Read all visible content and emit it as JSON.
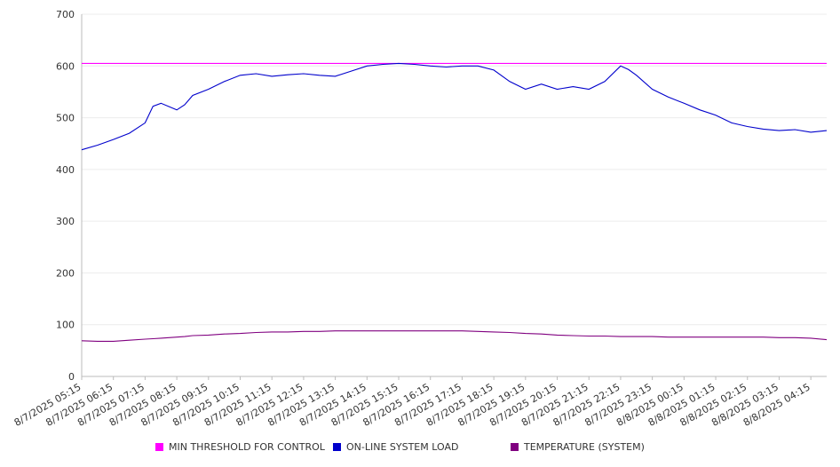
{
  "chart_data": {
    "type": "line",
    "ylim": [
      0,
      700
    ],
    "y_ticks": [
      0,
      100,
      200,
      300,
      400,
      500,
      600,
      700
    ],
    "x_tick_labels": [
      "8/7/2025 05:15",
      "8/7/2025 06:15",
      "8/7/2025 07:15",
      "8/7/2025 08:15",
      "8/7/2025 09:15",
      "8/7/2025 10:15",
      "8/7/2025 11:15",
      "8/7/2025 12:15",
      "8/7/2025 13:15",
      "8/7/2025 14:15",
      "8/7/2025 15:15",
      "8/7/2025 16:15",
      "8/7/2025 17:15",
      "8/7/2025 18:15",
      "8/7/2025 19:15",
      "8/7/2025 20:15",
      "8/7/2025 21:15",
      "8/7/2025 22:15",
      "8/7/2025 23:15",
      "8/8/2025 00:15",
      "8/8/2025 01:15",
      "8/8/2025 02:15",
      "8/8/2025 03:15",
      "8/8/2025 04:15"
    ],
    "x": [
      "8/7/2025 05:15",
      "8/7/2025 05:45",
      "8/7/2025 06:15",
      "8/7/2025 06:45",
      "8/7/2025 07:15",
      "8/7/2025 07:30",
      "8/7/2025 07:45",
      "8/7/2025 08:15",
      "8/7/2025 08:30",
      "8/7/2025 08:45",
      "8/7/2025 09:15",
      "8/7/2025 09:45",
      "8/7/2025 10:15",
      "8/7/2025 10:45",
      "8/7/2025 11:15",
      "8/7/2025 11:45",
      "8/7/2025 12:15",
      "8/7/2025 12:45",
      "8/7/2025 13:15",
      "8/7/2025 13:45",
      "8/7/2025 14:15",
      "8/7/2025 14:45",
      "8/7/2025 15:15",
      "8/7/2025 15:45",
      "8/7/2025 16:15",
      "8/7/2025 16:45",
      "8/7/2025 17:15",
      "8/7/2025 17:45",
      "8/7/2025 18:15",
      "8/7/2025 18:45",
      "8/7/2025 19:15",
      "8/7/2025 19:45",
      "8/7/2025 20:15",
      "8/7/2025 20:45",
      "8/7/2025 21:15",
      "8/7/2025 21:45",
      "8/7/2025 22:15",
      "8/7/2025 22:30",
      "8/7/2025 22:45",
      "8/7/2025 23:15",
      "8/7/2025 23:45",
      "8/8/2025 00:15",
      "8/8/2025 00:45",
      "8/8/2025 01:15",
      "8/8/2025 01:45",
      "8/8/2025 02:15",
      "8/8/2025 02:45",
      "8/8/2025 03:15",
      "8/8/2025 03:45",
      "8/8/2025 04:15",
      "8/8/2025 04:45"
    ],
    "series": [
      {
        "name": "MIN THRESHOLD FOR CONTROL",
        "color": "#ff00ff",
        "values": [
          605,
          605,
          605,
          605,
          605,
          605,
          605,
          605,
          605,
          605,
          605,
          605,
          605,
          605,
          605,
          605,
          605,
          605,
          605,
          605,
          605,
          605,
          605,
          605,
          605,
          605,
          605,
          605,
          605,
          605,
          605,
          605,
          605,
          605,
          605,
          605,
          605,
          605,
          605,
          605,
          605,
          605,
          605,
          605,
          605,
          605,
          605,
          605,
          605,
          605,
          605
        ]
      },
      {
        "name": "ON-LINE SYSTEM LOAD",
        "color": "#0000cc",
        "values": [
          438,
          447,
          458,
          470,
          490,
          522,
          528,
          515,
          525,
          543,
          555,
          570,
          582,
          585,
          580,
          583,
          585,
          582,
          580,
          590,
          600,
          603,
          605,
          603,
          600,
          598,
          600,
          600,
          592,
          570,
          555,
          565,
          555,
          560,
          555,
          570,
          600,
          593,
          582,
          555,
          540,
          528,
          515,
          505,
          490,
          483,
          478,
          475,
          477,
          472,
          475
        ]
      },
      {
        "name": "TEMPERATURE (SYSTEM)",
        "color": "#800080",
        "values": [
          69,
          68,
          68,
          70,
          72,
          73,
          74,
          76,
          77,
          79,
          80,
          82,
          83,
          85,
          86,
          86,
          87,
          87,
          88,
          88,
          88,
          88,
          88,
          88,
          88,
          88,
          88,
          87,
          86,
          85,
          83,
          82,
          80,
          79,
          78,
          78,
          77,
          77,
          77,
          77,
          76,
          76,
          76,
          76,
          76,
          76,
          76,
          75,
          75,
          74,
          71
        ]
      }
    ],
    "legend_position": "bottom",
    "grid": true
  }
}
